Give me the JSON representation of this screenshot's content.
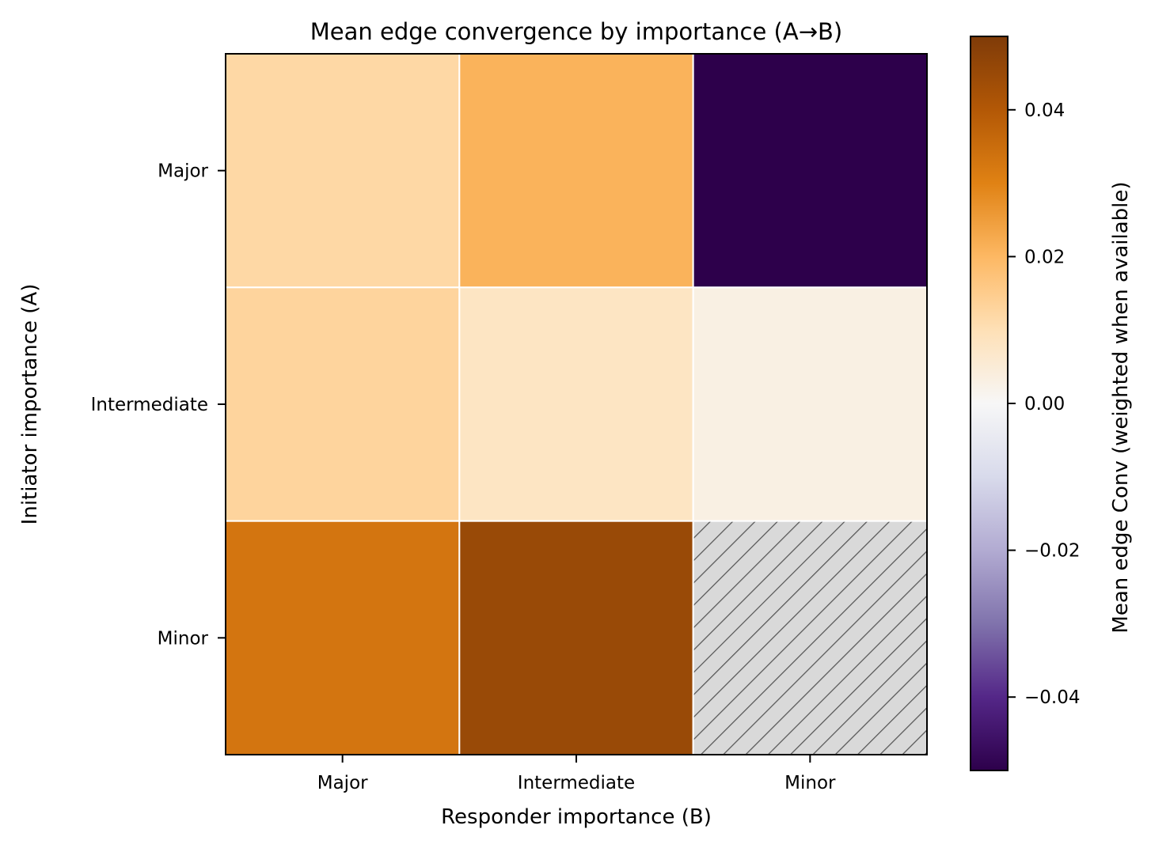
{
  "chart_data": {
    "type": "heatmap",
    "title": "Mean edge convergence by importance (A→B)",
    "xlabel": "Responder importance (B)",
    "ylabel": "Initiator importance (A)",
    "x_categories": [
      "Major",
      "Intermediate",
      "Minor"
    ],
    "y_categories": [
      "Major",
      "Intermediate",
      "Minor"
    ],
    "values": [
      [
        0.012,
        0.021,
        -0.05
      ],
      [
        0.013,
        0.008,
        0.003
      ],
      [
        0.033,
        0.045,
        null
      ]
    ],
    "missing_style": "hatched",
    "colormap": "PuOr_r",
    "vmin": -0.05,
    "vmax": 0.05,
    "colorbar": {
      "label": "Mean edge Conv (weighted when available)",
      "ticks": [
        -0.04,
        -0.02,
        0.0,
        0.02,
        0.04
      ],
      "tick_labels": [
        "−0.04",
        "−0.02",
        "0.00",
        "0.02",
        "0.04"
      ]
    },
    "colors": {
      "missing_fill": "#d9d9d9",
      "hatch": "#555555",
      "cell_border": "#ffffff"
    }
  }
}
